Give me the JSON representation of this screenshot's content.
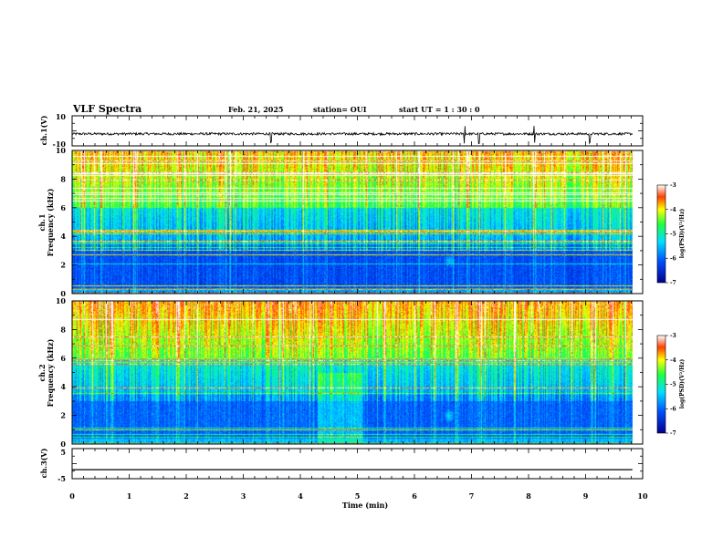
{
  "header": {
    "title": "VLF Spectra",
    "date": "Feb. 21, 2025",
    "station": "station= OUI",
    "start": "start UT =  1 : 30 : 0"
  },
  "chart_data": [
    {
      "type": "line",
      "panel": "ch1-waveform",
      "ylabel": "ch.1(V)",
      "ylim": [
        -10,
        10
      ],
      "yticks": [
        "10",
        "-10"
      ],
      "xlim": [
        0,
        10
      ],
      "series": [
        {
          "description": "noisy waveform around -2 V with impulsive spikes",
          "baseline": -2,
          "spikes_at_min": [
            3.49,
            6.88,
            7.13,
            8.1,
            9.07
          ]
        }
      ]
    },
    {
      "type": "heatmap",
      "panel": "ch1-spectrogram",
      "ylabel_1": "ch.1",
      "ylabel_2": "Frequency (kHz)",
      "ylim": [
        0,
        10
      ],
      "yticks": [
        "0",
        "2",
        "4",
        "6",
        "8",
        "10"
      ],
      "xlim": [
        0,
        10
      ],
      "colorbar": {
        "label": "log(PSD)(V²/Hz)",
        "range": [
          -7,
          -3
        ],
        "ticks": [
          "-3",
          "-4",
          "-5",
          "-6",
          "-7"
        ]
      },
      "features": {
        "emission_patch_min": 6.6,
        "emission_patch_khz": 2.3
      }
    },
    {
      "type": "heatmap",
      "panel": "ch2-spectrogram",
      "ylabel_1": "ch.2",
      "ylabel_2": "Frequency (kHz)",
      "ylim": [
        0,
        10
      ],
      "yticks": [
        "0",
        "2",
        "4",
        "6",
        "8",
        "10"
      ],
      "xlim": [
        0,
        10
      ],
      "colorbar": {
        "label": "log(PSD)(V²/Hz)",
        "range": [
          -7,
          -3
        ],
        "ticks": [
          "-3",
          "-4",
          "-5",
          "-6",
          "-7"
        ]
      },
      "features": {
        "enhanced_band_min": [
          4.3,
          5.1
        ],
        "emission_patch_min": 6.6,
        "emission_patch_khz": 2.0
      }
    },
    {
      "type": "line",
      "panel": "ch3-waveform",
      "ylabel": "ch.3(V)",
      "ylim": [
        -5,
        5
      ],
      "yticks": [
        "5",
        "-5"
      ],
      "xlim": [
        0,
        10
      ],
      "series": [
        {
          "description": "flat line",
          "values": [
            -2,
            -2
          ]
        }
      ]
    }
  ],
  "xaxis": {
    "label": "Time (min)",
    "ticks": [
      "0",
      "1",
      "2",
      "3",
      "4",
      "5",
      "6",
      "7",
      "8",
      "9",
      "10"
    ]
  }
}
